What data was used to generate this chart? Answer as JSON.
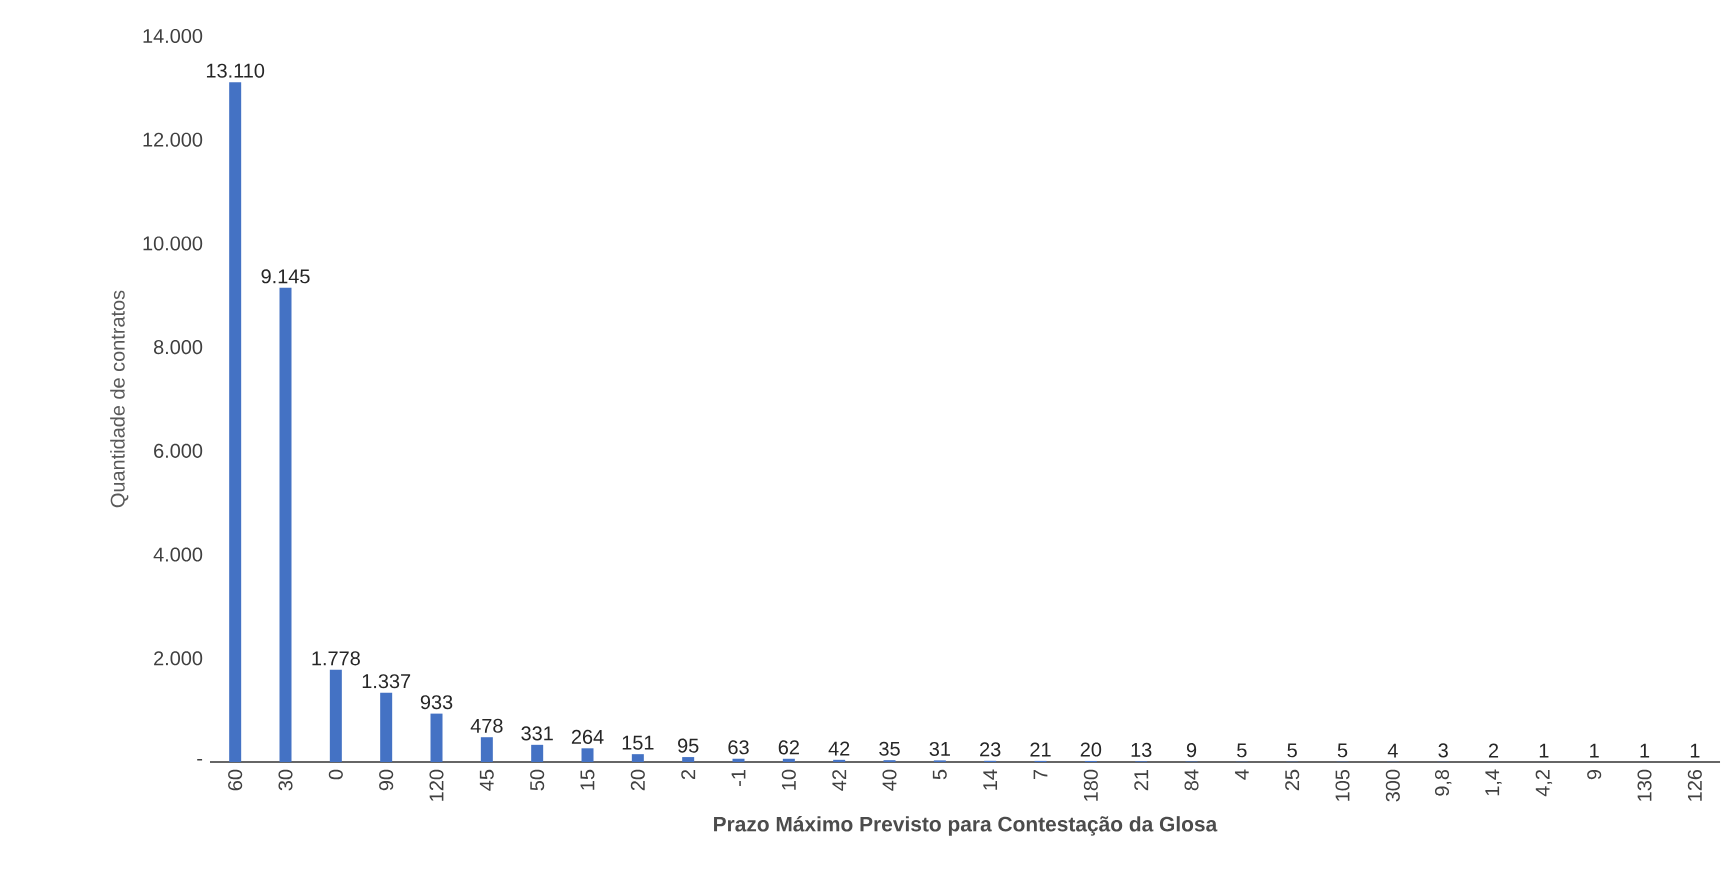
{
  "chart_data": {
    "type": "bar",
    "xlabel": "**Prazo Máximo Previsto para Contestação da Glosa**",
    "ylabel": "Quantidade de contratos",
    "categories": [
      "60",
      "30",
      "0",
      "90",
      "120",
      "45",
      "50",
      "15",
      "20",
      "2",
      "-1",
      "10",
      "42",
      "40",
      "5",
      "14",
      "7",
      "180",
      "21",
      "84",
      "4",
      "25",
      "105",
      "300",
      "9,8",
      "1,4",
      "4,2",
      "9",
      "130",
      "126"
    ],
    "values": [
      13110,
      9145,
      1778,
      1337,
      933,
      478,
      331,
      264,
      151,
      95,
      63,
      62,
      42,
      35,
      31,
      23,
      21,
      20,
      13,
      9,
      5,
      5,
      5,
      4,
      3,
      2,
      1,
      1,
      1,
      1
    ],
    "value_labels": [
      "13.110",
      "9.145",
      "1.778",
      "1.337",
      "933",
      "478",
      "331",
      "264",
      "151",
      "95",
      "63",
      "62",
      "42",
      "35",
      "31",
      "23",
      "21",
      "20",
      "13",
      "9",
      "5",
      "5",
      "5",
      "4",
      "3",
      "2",
      "1",
      "1",
      "1",
      "1"
    ],
    "color": "#4472c4",
    "ylim": [
      0,
      14000
    ],
    "yticks": [
      {
        "value": 0,
        "label": "-"
      },
      {
        "value": 2000,
        "label": "2.000"
      },
      {
        "value": 4000,
        "label": "4.000"
      },
      {
        "value": 6000,
        "label": "6.000"
      },
      {
        "value": 8000,
        "label": "8.000"
      },
      {
        "value": 10000,
        "label": "10.000"
      },
      {
        "value": 12000,
        "label": "12.000"
      },
      {
        "value": 14000,
        "label": "14.000"
      }
    ],
    "grid": false
  }
}
